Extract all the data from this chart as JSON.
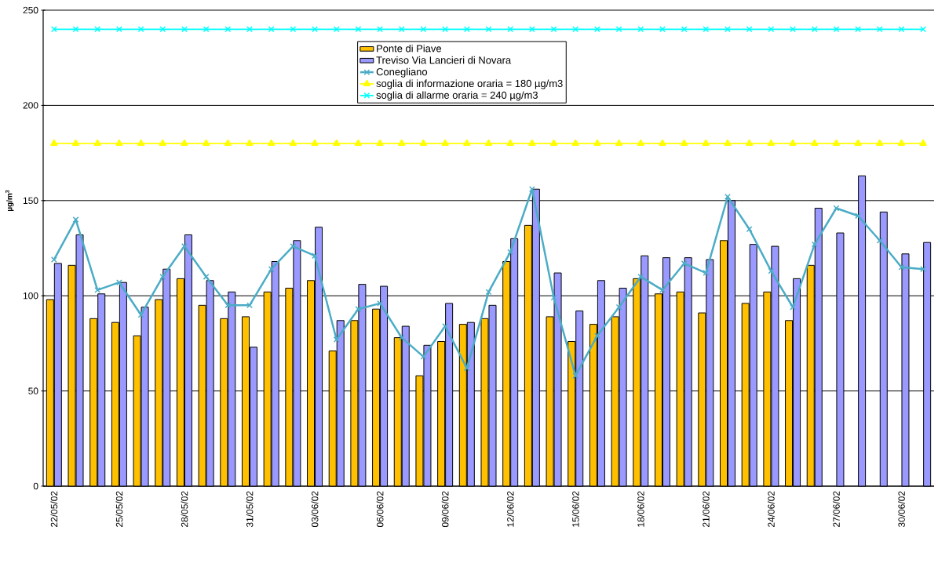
{
  "chart_data": {
    "type": "bar",
    "ylabel": "µg/m$^{3}$",
    "categories": [
      "22/05/02",
      null,
      null,
      "25/05/02",
      null,
      null,
      "28/05/02",
      null,
      null,
      "31/05/02",
      null,
      null,
      "03/06/02",
      null,
      null,
      "06/06/02",
      null,
      null,
      "09/06/02",
      null,
      null,
      "12/06/02",
      null,
      null,
      "15/06/02",
      null,
      null,
      "18/06/02",
      null,
      null,
      "21/06/02",
      null,
      null,
      "24/06/02",
      null,
      null,
      "27/06/02",
      null,
      null,
      "30/06/02",
      null
    ],
    "series": [
      {
        "name": "Ponte di Piave",
        "color": "#ffc000",
        "values": [
          98,
          116,
          88,
          86,
          79,
          98,
          109,
          95,
          88,
          89,
          102,
          104,
          108,
          71,
          87,
          93,
          78,
          58,
          76,
          85,
          88,
          118,
          137,
          89,
          76,
          85,
          89,
          109,
          101,
          102,
          91,
          129,
          96,
          102,
          87,
          116,
          null,
          null,
          null,
          null,
          null
        ]
      },
      {
        "name": "Treviso Via Lancieri di Novara",
        "color": "#9999ff",
        "values": [
          117,
          132,
          101,
          107,
          94,
          114,
          132,
          108,
          102,
          73,
          118,
          129,
          136,
          87,
          106,
          105,
          84,
          74,
          96,
          86,
          95,
          130,
          156,
          112,
          92,
          108,
          104,
          121,
          120,
          120,
          119,
          150,
          127,
          126,
          109,
          146,
          133,
          163,
          144,
          122,
          128
        ]
      },
      {
        "name": "Conegliano",
        "type": "line",
        "color": "#4bacc6",
        "marker": "cross",
        "values": [
          119,
          140,
          103,
          107,
          90,
          110,
          126,
          110,
          95,
          95,
          114,
          126,
          121,
          77,
          93,
          96,
          78,
          68,
          84,
          62,
          102,
          123,
          156,
          99,
          58,
          79,
          94,
          110,
          103,
          117,
          112,
          152,
          135,
          113,
          94,
          127,
          146,
          142,
          129,
          115,
          114
        ]
      },
      {
        "name": "soglia di informazione oraria = 180 µg/m3",
        "type": "line",
        "color": "#ffff00",
        "marker": "triangle",
        "values": [
          180,
          180,
          180,
          180,
          180,
          180,
          180,
          180,
          180,
          180,
          180,
          180,
          180,
          180,
          180,
          180,
          180,
          180,
          180,
          180,
          180,
          180,
          180,
          180,
          180,
          180,
          180,
          180,
          180,
          180,
          180,
          180,
          180,
          180,
          180,
          180,
          180,
          180,
          180,
          180,
          180
        ]
      },
      {
        "name": "soglia di allarme oraria = 240 µg/m3",
        "type": "line",
        "color": "#00ffff",
        "marker": "cross",
        "values": [
          240,
          240,
          240,
          240,
          240,
          240,
          240,
          240,
          240,
          240,
          240,
          240,
          240,
          240,
          240,
          240,
          240,
          240,
          240,
          240,
          240,
          240,
          240,
          240,
          240,
          240,
          240,
          240,
          240,
          240,
          240,
          240,
          240,
          240,
          240,
          240,
          240,
          240,
          240,
          240,
          240
        ]
      }
    ],
    "ylim": [
      0,
      250
    ],
    "yticks": [
      0,
      50,
      100,
      150,
      200,
      250
    ],
    "grid": "y",
    "legend": "top"
  }
}
